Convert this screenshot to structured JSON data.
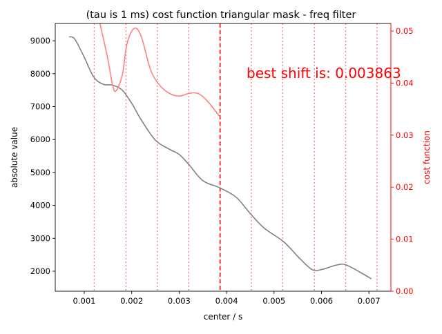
{
  "chart_data": {
    "type": "line",
    "title": "(tau is 1 ms) cost function triangular mask - freq filter",
    "xlabel": "center / s",
    "ylabel": "absolute value",
    "ylabel_right": "cost function",
    "annotation": "best shift is: 0.003863",
    "best_shift": 0.003863,
    "xlim": [
      0.0004,
      0.0074
    ],
    "ylim": [
      1400,
      9500
    ],
    "ylim_right": [
      0.0,
      0.0515
    ],
    "x_ticks": [
      "0.001",
      "0.002",
      "0.003",
      "0.004",
      "0.005",
      "0.006",
      "0.007"
    ],
    "y_ticks": [
      "2000",
      "3000",
      "4000",
      "5000",
      "6000",
      "7000",
      "8000",
      "9000"
    ],
    "y_ticks_right": [
      "0.00",
      "0.01",
      "0.02",
      "0.03",
      "0.04",
      "0.05"
    ],
    "vertical_lines": [
      0.00121,
      0.00188,
      0.00254,
      0.0032,
      0.00386,
      0.00452,
      0.00518,
      0.00585,
      0.00651,
      0.00717
    ],
    "series": [
      {
        "name": "absolute value",
        "axis": "left",
        "color": "#808080",
        "x": [
          0.00068,
          0.0008,
          0.001,
          0.0012,
          0.0014,
          0.0016,
          0.0018,
          0.002,
          0.0022,
          0.0025,
          0.0028,
          0.003,
          0.0032,
          0.0035,
          0.00386,
          0.0042,
          0.0045,
          0.0048,
          0.0052,
          0.0055,
          0.0058,
          0.006,
          0.0063,
          0.0065,
          0.0068,
          0.00705
        ],
        "values": [
          9120,
          9050,
          8500,
          7900,
          7680,
          7650,
          7500,
          7100,
          6600,
          5980,
          5700,
          5550,
          5250,
          4750,
          4530,
          4250,
          3750,
          3300,
          2900,
          2450,
          2050,
          2050,
          2180,
          2200,
          1980,
          1770
        ]
      },
      {
        "name": "cost function",
        "axis": "right",
        "color": "#ff8080",
        "x": [
          0.00133,
          0.0015,
          0.0016,
          0.00167,
          0.0018,
          0.0019,
          0.00205,
          0.0022,
          0.0024,
          0.0026,
          0.0028,
          0.003,
          0.0032,
          0.0034,
          0.0036,
          0.00386
        ],
        "values": [
          0.0515,
          0.0445,
          0.0395,
          0.0385,
          0.0415,
          0.0475,
          0.0505,
          0.049,
          0.0425,
          0.0395,
          0.038,
          0.0375,
          0.038,
          0.038,
          0.0365,
          0.0335
        ]
      }
    ],
    "colors": {
      "left_axis": "#000000",
      "right_axis": "#ff0000",
      "best_line": "#ff0000",
      "annotation": "#ff0000"
    }
  }
}
